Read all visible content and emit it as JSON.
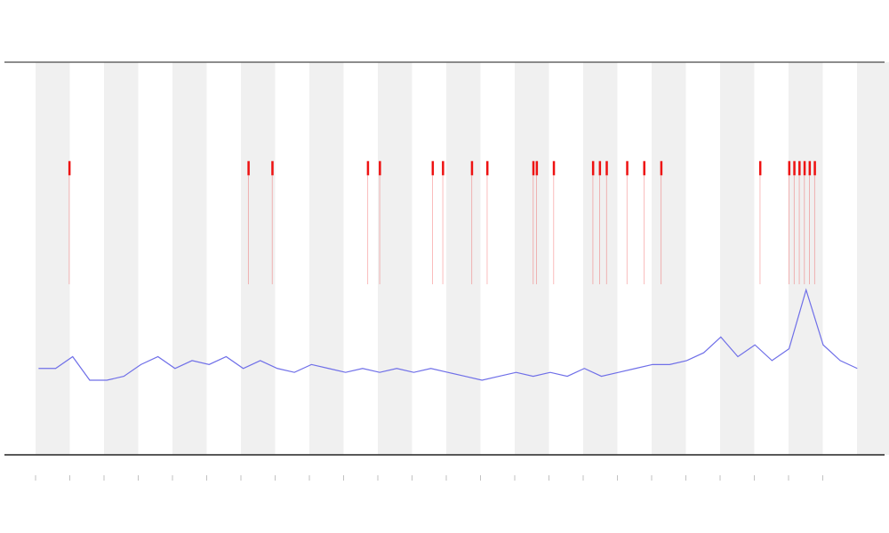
{
  "chart_data": {
    "type": "line",
    "x": [
      2,
      3,
      4,
      5,
      6,
      7,
      8,
      9,
      10,
      11,
      12,
      13,
      14,
      15,
      16,
      17,
      18,
      19,
      20,
      21,
      22,
      23,
      24,
      25,
      26,
      27,
      28,
      29,
      30,
      31,
      32,
      33,
      34,
      35,
      36,
      37,
      38,
      39,
      40,
      41,
      42,
      43,
      44,
      45,
      46,
      47,
      48,
      49,
      50
    ],
    "series": [
      {
        "color": "#6f6fe8",
        "values": [
          22,
          22,
          25,
          19,
          19,
          20,
          23,
          25,
          22,
          24,
          23,
          25,
          22,
          24,
          22,
          21,
          23,
          22,
          21,
          22,
          21,
          22,
          21,
          22,
          21,
          20,
          19,
          20,
          21,
          20,
          21,
          20,
          22,
          20,
          21,
          22,
          23,
          23,
          24,
          26,
          30,
          25,
          28,
          24,
          27,
          42,
          28,
          24,
          22
        ]
      }
    ],
    "events": {
      "color": "#ee1111",
      "level": 73,
      "x": [
        3.8,
        14.3,
        15.7,
        21.3,
        22,
        25.1,
        25.7,
        27.4,
        28.3,
        31,
        31.2,
        32.2,
        34.5,
        34.9,
        35.3,
        36.5,
        37.5,
        38.5,
        44.3,
        46.0,
        46.3,
        46.6,
        46.9,
        47.2,
        47.5
      ]
    },
    "xlim": [
      0,
      51.6
    ],
    "ylim": [
      0,
      100
    ]
  }
}
